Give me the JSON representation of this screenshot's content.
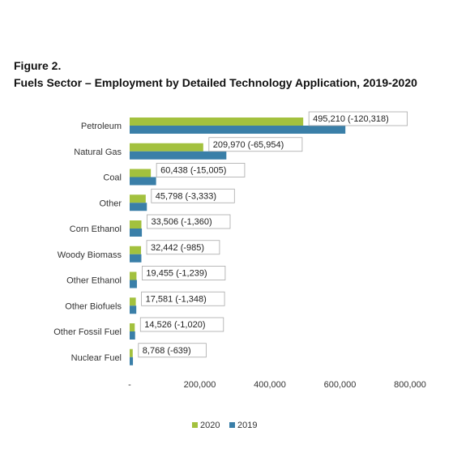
{
  "figure": {
    "label": "Figure 2.",
    "title": "Fuels Sector – Employment by Detailed Technology Application, 2019-2020"
  },
  "colors": {
    "series_2020": "#a3c13e",
    "series_2019": "#3a7fa8",
    "label_box_border": "#a8a8a8",
    "axis_text": "#333333"
  },
  "chart_data": {
    "type": "bar",
    "orientation": "horizontal",
    "categories": [
      "Petroleum",
      "Natural Gas",
      "Coal",
      "Other",
      "Corn Ethanol",
      "Woody Biomass",
      "Other Ethanol",
      "Other Biofuels",
      "Other Fossil Fuel",
      "Nuclear Fuel"
    ],
    "series": [
      {
        "name": "2020",
        "values": [
          495210,
          209970,
          60438,
          45798,
          33506,
          32442,
          19455,
          17581,
          14526,
          8768
        ]
      },
      {
        "name": "2019",
        "values": [
          615528,
          275924,
          75443,
          49131,
          34866,
          33427,
          20694,
          18929,
          15546,
          9407
        ]
      }
    ],
    "data_labels": [
      "495,210 (-120,318)",
      "209,970 (-65,954)",
      "60,438 (-15,005)",
      "45,798 (-3,333)",
      "33,506 (-1,360)",
      "32,442 (-985)",
      "19,455 (-1,239)",
      "17,581 (-1,348)",
      "14,526 (-1,020)",
      "8,768 (-639)"
    ],
    "x_ticks": [
      0,
      200000,
      400000,
      600000,
      800000
    ],
    "x_tick_labels": [
      "-",
      "200,000",
      "400,000",
      "600,000",
      "800,000"
    ],
    "xlim": [
      0,
      800000
    ],
    "grid": false,
    "legend_position": "bottom-center",
    "title": "",
    "xlabel": "",
    "ylabel": ""
  }
}
